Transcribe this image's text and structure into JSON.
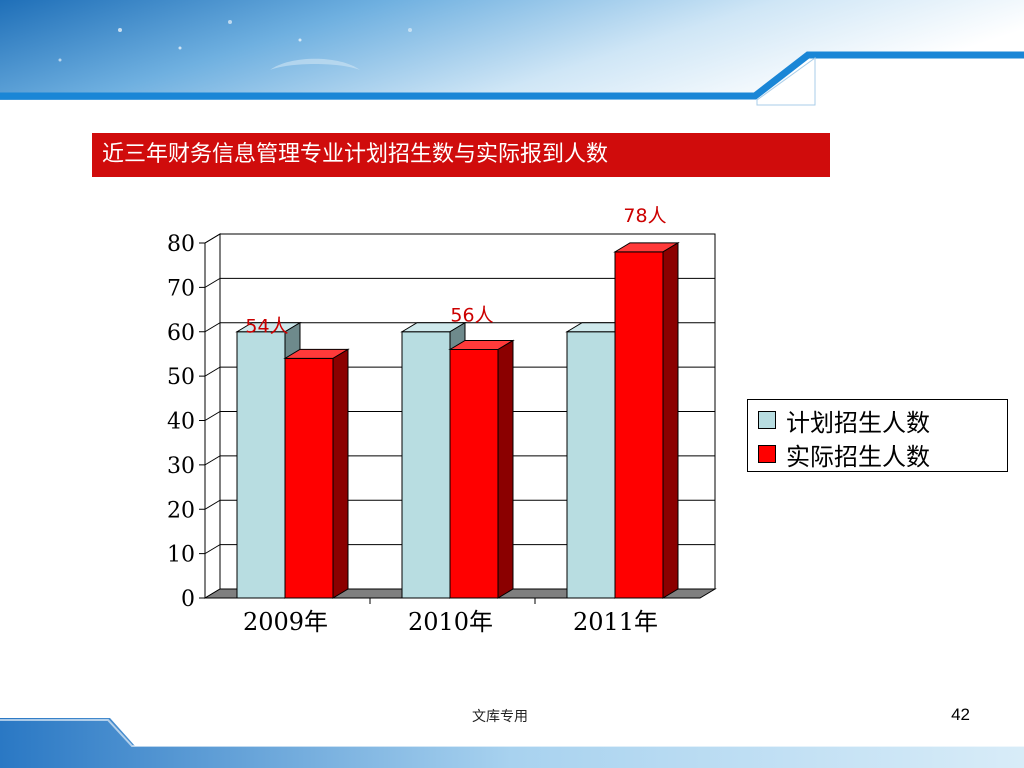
{
  "slide": {
    "title": "近三年财务信息管理专业计划招生数与实际报到人数",
    "footer_text": "文库专用",
    "page_number": "42"
  },
  "colors": {
    "title_bg": "#d00c0c",
    "planned_bar": "#b8dde1",
    "actual_bar": "#ff0000",
    "label_red": "#cc0000",
    "banner_blue": "#1a86d6"
  },
  "chart_data": {
    "type": "bar",
    "categories": [
      "2009年",
      "2010年",
      "2011年"
    ],
    "series": [
      {
        "name": "计划招生人数",
        "values": [
          60,
          60,
          60
        ]
      },
      {
        "name": "实际招生人数",
        "values": [
          54,
          56,
          78
        ]
      }
    ],
    "data_labels": [
      "54人",
      "56人",
      "78人"
    ],
    "ylim": [
      0,
      80
    ],
    "yticks": [
      "0",
      "10",
      "20",
      "30",
      "40",
      "50",
      "60",
      "70",
      "80"
    ],
    "grid": true,
    "legend_position": "right",
    "style": "3d"
  }
}
